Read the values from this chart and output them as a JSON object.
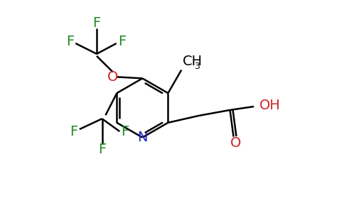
{
  "bg_color": "#ffffff",
  "bond_color": "#000000",
  "bond_width": 1.8,
  "atom_colors": {
    "N": "#2222cc",
    "O": "#cc2222",
    "F": "#228822"
  },
  "font_size": 14,
  "font_size_sub": 9
}
